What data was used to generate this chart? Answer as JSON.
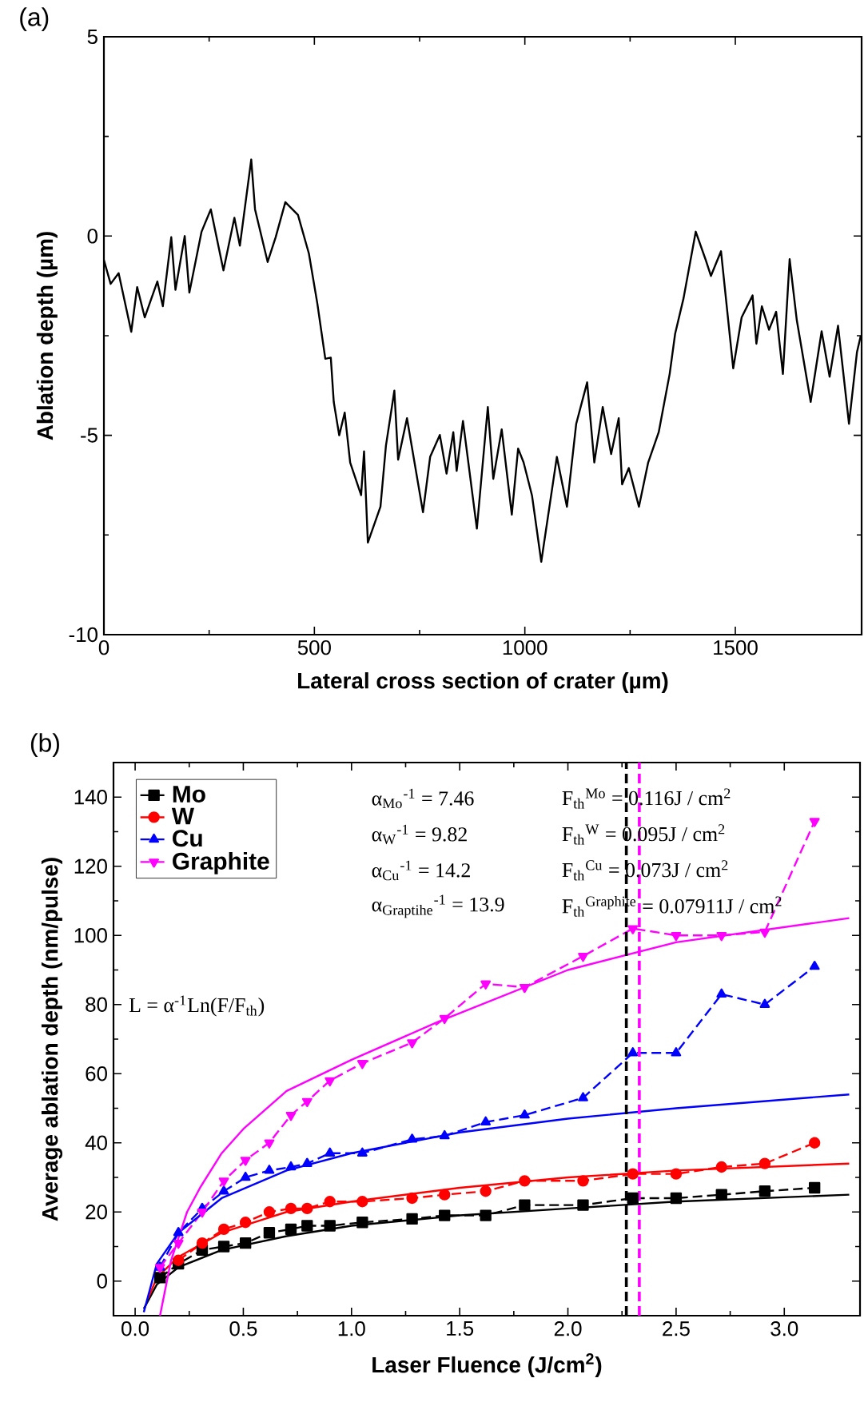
{
  "chart_data": [
    {
      "type": "line",
      "title": "(a)",
      "xlabel": "Lateral cross section of crater (µm)",
      "ylabel": "Ablation depth (µm)",
      "xlim": [
        0,
        1800
      ],
      "xticks": [
        0,
        500,
        1000,
        1500
      ],
      "ylim": [
        -10,
        5
      ],
      "yticks": [
        -10,
        -5,
        0,
        5
      ],
      "color": "#000000",
      "marker": "none",
      "line_style": "solid",
      "x": [
        0,
        16,
        35,
        65,
        79,
        97,
        127,
        140,
        160,
        170,
        192,
        203,
        232,
        254,
        284,
        310,
        323,
        350,
        359,
        389,
        408,
        431,
        461,
        487,
        507,
        526,
        539,
        546,
        559,
        572,
        585,
        611,
        618,
        627,
        657,
        670,
        690,
        699,
        720,
        758,
        775,
        798,
        814,
        830,
        838,
        853,
        886,
        912,
        925,
        945,
        969,
        984,
        997,
        1017,
        1039,
        1076,
        1100,
        1122,
        1148,
        1165,
        1185,
        1205,
        1223,
        1231,
        1247,
        1271,
        1293,
        1318,
        1344,
        1357,
        1377,
        1406,
        1429,
        1442,
        1466,
        1495,
        1515,
        1541,
        1550,
        1563,
        1580,
        1597,
        1613,
        1629,
        1646,
        1679,
        1705,
        1724,
        1744,
        1770,
        1789,
        1798
      ],
      "values": [
        -0.6,
        -1.2,
        -0.93,
        -2.4,
        -1.28,
        -2.04,
        -1.14,
        -1.76,
        -0.03,
        -1.35,
        0,
        -1.42,
        0.11,
        0.67,
        -0.86,
        0.46,
        -0.24,
        1.92,
        0.67,
        -0.65,
        -0.03,
        0.85,
        0.53,
        -0.44,
        -1.69,
        -3.08,
        -3.05,
        -4.16,
        -5.0,
        -4.43,
        -5.68,
        -6.5,
        -5.4,
        -7.69,
        -6.79,
        -5.26,
        -3.88,
        -5.61,
        -4.57,
        -6.93,
        -5.54,
        -4.99,
        -5.96,
        -4.92,
        -5.89,
        -4.64,
        -7.34,
        -4.29,
        -6.09,
        -4.85,
        -6.99,
        -5.33,
        -5.68,
        -6.51,
        -8.17,
        -5.54,
        -6.79,
        -4.71,
        -3.67,
        -5.68,
        -4.29,
        -5.47,
        -4.57,
        -6.23,
        -5.82,
        -6.79,
        -5.68,
        -4.92,
        -3.46,
        -2.45,
        -1.56,
        0.11,
        -0.58,
        -1.0,
        -0.38,
        -3.32,
        -2.04,
        -1.49,
        -2.7,
        -1.76,
        -2.35,
        -1.9,
        -3.46,
        -0.58,
        -2.11,
        -4.16,
        -2.39,
        -3.53,
        -2.25,
        -4.71,
        -2.91,
        -2.5
      ]
    },
    {
      "type": "line",
      "title": "(b)",
      "xlabel": "Laser Fluence (J/cm$^{2}$)",
      "ylabel": "Average ablation depth (nm/pulse)",
      "xlim": [
        -0.1,
        3.35
      ],
      "xticks": [
        {
          "value": 0,
          "label": "0.0"
        },
        {
          "value": 0.5,
          "label": "0.5"
        },
        {
          "value": 1,
          "label": "1.0"
        },
        {
          "value": 1.5,
          "label": "1.5"
        },
        {
          "value": 2,
          "label": "2.0"
        },
        {
          "value": 2.5,
          "label": "2.5"
        },
        {
          "value": 3,
          "label": "3.0"
        }
      ],
      "ylim": [
        -10,
        150
      ],
      "yticks": [
        0,
        20,
        40,
        60,
        80,
        100,
        120,
        140
      ],
      "legend": "top left",
      "x": [
        0.115,
        0.2,
        0.31,
        0.41,
        0.51,
        0.62,
        0.72,
        0.795,
        0.9,
        1.05,
        1.28,
        1.43,
        1.62,
        1.8,
        2.07,
        2.3,
        2.5,
        2.71,
        2.91,
        3.14
      ],
      "series": [
        {
          "name": "Mo",
          "type": "line",
          "color": "#000000",
          "marker": "square",
          "line_style": "dashed",
          "values": [
            1,
            5,
            9,
            10,
            11,
            14,
            15,
            16,
            16,
            17,
            18,
            19,
            19,
            22,
            22,
            24,
            24,
            25,
            26,
            27
          ]
        },
        {
          "name": "W",
          "type": "line",
          "color": "#ff0000",
          "marker": "circle",
          "line_style": "dashed",
          "values": [
            null,
            6,
            11,
            15,
            17,
            20,
            21,
            21,
            23,
            23,
            24,
            25,
            26,
            29,
            29,
            31,
            31,
            33,
            34,
            40
          ]
        },
        {
          "name": "Cu",
          "type": "line",
          "color": "#0000ff",
          "marker": "triangle",
          "line_style": "dashed",
          "values": [
            4,
            14,
            21,
            26,
            30,
            32,
            33,
            34,
            37,
            37,
            41,
            42,
            46,
            48,
            53,
            66,
            66,
            83,
            80,
            91
          ]
        },
        {
          "name": "Graphite",
          "type": "line",
          "color": "#ff00ff",
          "marker": "triangle-down",
          "line_style": "dashed",
          "values": [
            4,
            11,
            20,
            29,
            35,
            40,
            48,
            52,
            58,
            63,
            69,
            76,
            86,
            85,
            94,
            102,
            100,
            100,
            101,
            133
          ]
        },
        {
          "type": "line",
          "color": "#000000",
          "marker": "none",
          "line_style": "solid",
          "x": [
            0.04,
            0.1,
            0.2,
            0.4,
            0.7,
            1.0,
            1.5,
            2.0,
            2.5,
            3.3
          ],
          "values": [
            -8,
            -1,
            4,
            9,
            13,
            16,
            19,
            21,
            23,
            25
          ]
        },
        {
          "type": "line",
          "color": "#ff0000",
          "marker": "none",
          "line_style": "solid",
          "x": [
            0.06,
            0.1,
            0.2,
            0.4,
            0.7,
            1.0,
            1.5,
            2.0,
            2.5,
            3.3
          ],
          "values": [
            -5,
            1,
            7,
            14,
            20,
            23,
            27,
            30,
            32,
            34
          ]
        },
        {
          "type": "line",
          "color": "#0000ff",
          "marker": "none",
          "line_style": "solid",
          "x": [
            0.04,
            0.1,
            0.2,
            0.4,
            0.7,
            1.0,
            1.5,
            2.0,
            2.5,
            3.3
          ],
          "values": [
            -9,
            5,
            14,
            24,
            32,
            37,
            43,
            47,
            50,
            54
          ]
        },
        {
          "type": "line",
          "color": "#ff00ff",
          "marker": "none",
          "line_style": "solid",
          "x": [
            0.115,
            0.166,
            0.24,
            0.3,
            0.4,
            0.5,
            0.7,
            1.0,
            1.4,
            2.0,
            2.5,
            3.3
          ],
          "values": [
            -10,
            6,
            20,
            27,
            37,
            44,
            55,
            64,
            75,
            90,
            98,
            105
          ]
        }
      ],
      "ref_lines": [
        {
          "axis": "x",
          "value": 2.27,
          "color": "#000000",
          "line_style": "dashed"
        },
        {
          "axis": "x",
          "value": 2.33,
          "color": "#ff00ff",
          "line_style": "dashed"
        }
      ],
      "annotations": [
        "α$_{Mo}$$^{-1}$ = 7.46",
        "α$_{W}$$^{-1}$ = 9.82",
        "α$_{Cu}$$^{-1}$ = 14.2",
        "α$_{Graptihe}$$^{-1}$ = 13.9",
        "F$_{th}$$^{Mo}$ = 0.116J / cm$^{2}$",
        "F$_{th}$$^{W}$ = 0.095J / cm$^{2}$",
        "F$_{th}$$^{Cu}$ = 0.073J / cm$^{2}$",
        "F$_{th}$$^{Graphite}$ = 0.07911J / cm$^{2}$",
        "L = α$^{-1}$Ln(F/F$_{th}$)"
      ]
    }
  ]
}
